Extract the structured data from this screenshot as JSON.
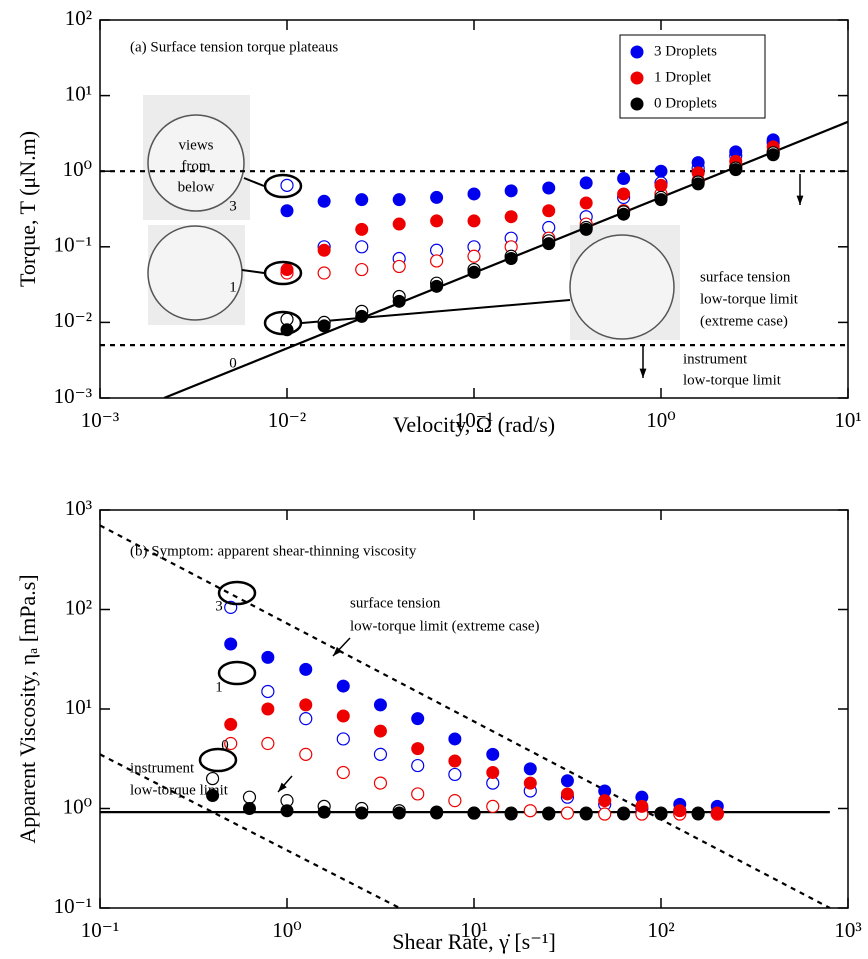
{
  "chart_data": [
    {
      "type": "scatter",
      "log_x": true,
      "log_y": true,
      "xlabel": "Velocity, Ω (rad/s)",
      "ylabel": "Torque, T (μN.m)",
      "xlim": [
        0.001,
        10
      ],
      "ylim": [
        0.001,
        100
      ],
      "xticks": [
        {
          "value": 0.001,
          "label": "10⁻³"
        },
        {
          "value": 0.01,
          "label": "10⁻²"
        },
        {
          "value": 0.1,
          "label": "10⁻¹"
        },
        {
          "value": 1,
          "label": "10⁰"
        },
        {
          "value": 10,
          "label": "10¹"
        }
      ],
      "yticks": [
        {
          "value": 0.001,
          "label": "10⁻³"
        },
        {
          "value": 0.01,
          "label": "10⁻²"
        },
        {
          "value": 0.1,
          "label": "10⁻¹"
        },
        {
          "value": 1,
          "label": "10⁰"
        },
        {
          "value": 10,
          "label": "10¹"
        },
        {
          "value": 100,
          "label": "10²"
        }
      ],
      "legend": "upper right",
      "annotations": [
        "(a) Surface tension torque plateaus",
        "surface tension",
        "low-torque limit",
        "(extreme case)",
        "instrument",
        "low-torque limit",
        "views",
        "from",
        "below",
        "3",
        "1",
        "0"
      ],
      "series": [
        {
          "name": "3 Droplets",
          "color": "#0000ee",
          "x": [
            0.01,
            0.0158,
            0.0251,
            0.0398,
            0.0631,
            0.1,
            0.158,
            0.251,
            0.398,
            0.631,
            1,
            1.58,
            2.51,
            3.98
          ],
          "values": [
            0.3,
            0.4,
            0.42,
            0.42,
            0.45,
            0.5,
            0.55,
            0.6,
            0.7,
            0.8,
            1.0,
            1.3,
            1.8,
            2.6
          ],
          "open_values": [
            0.65,
            0.1,
            0.1,
            0.07,
            0.09,
            0.1,
            0.13,
            0.18,
            0.25,
            0.45,
            0.7,
            1.1,
            1.6,
            2.4
          ]
        },
        {
          "name": "1 Droplet",
          "color": "#ee0000",
          "x": [
            0.01,
            0.0158,
            0.0251,
            0.0398,
            0.0631,
            0.1,
            0.158,
            0.251,
            0.398,
            0.631,
            1,
            1.58,
            2.51,
            3.98
          ],
          "values": [
            0.05,
            0.09,
            0.17,
            0.2,
            0.22,
            0.22,
            0.25,
            0.3,
            0.38,
            0.5,
            0.65,
            0.95,
            1.35,
            2.1
          ],
          "open_values": [
            0.045,
            0.045,
            0.05,
            0.055,
            0.065,
            0.075,
            0.1,
            0.13,
            0.2,
            0.3,
            0.5,
            0.75,
            1.15,
            1.8
          ]
        },
        {
          "name": "0 Droplets",
          "color": "#000000",
          "x": [
            0.01,
            0.0158,
            0.0251,
            0.0398,
            0.0631,
            0.1,
            0.158,
            0.251,
            0.398,
            0.631,
            1,
            1.58,
            2.51,
            3.98
          ],
          "values": [
            0.008,
            0.009,
            0.012,
            0.019,
            0.03,
            0.046,
            0.07,
            0.11,
            0.17,
            0.27,
            0.42,
            0.68,
            1.05,
            1.65
          ],
          "open_values": [
            0.011,
            0.01,
            0.014,
            0.022,
            0.033,
            0.05,
            0.075,
            0.12,
            0.18,
            0.29,
            0.45,
            0.72,
            1.1,
            1.75
          ]
        }
      ],
      "lines": [
        {
          "x": [
            0.0022,
            10
          ],
          "y": [
            0.001,
            4.5
          ],
          "dash": false
        },
        {
          "x": [
            0.001,
            10
          ],
          "y": [
            1,
            1
          ],
          "dash": true
        },
        {
          "x": [
            0.001,
            10
          ],
          "y": [
            0.005,
            0.005
          ],
          "dash": true
        }
      ]
    },
    {
      "type": "scatter",
      "log_x": true,
      "log_y": true,
      "xlabel": "Shear Rate, γ̇ [s⁻¹]",
      "ylabel": "Apparent Viscosity, ηₐ [mPa.s]",
      "xlim": [
        0.1,
        1000
      ],
      "ylim": [
        0.1,
        1000
      ],
      "xticks": [
        {
          "value": 0.1,
          "label": "10⁻¹"
        },
        {
          "value": 1,
          "label": "10⁰"
        },
        {
          "value": 10,
          "label": "10¹"
        },
        {
          "value": 100,
          "label": "10²"
        },
        {
          "value": 1000,
          "label": "10³"
        }
      ],
      "yticks": [
        {
          "value": 0.1,
          "label": "10⁻¹"
        },
        {
          "value": 1,
          "label": "10⁰"
        },
        {
          "value": 10,
          "label": "10¹"
        },
        {
          "value": 100,
          "label": "10²"
        },
        {
          "value": 1000,
          "label": "10³"
        }
      ],
      "annotations": [
        "(b) Symptom: apparent shear-thinning viscosity",
        "surface tension",
        "low-torque limit (extreme case)",
        "instrument",
        "low-torque limit",
        "3",
        "1",
        "0"
      ],
      "series": [
        {
          "color": "#0000ee",
          "x": [
            0.5,
            0.79,
            1.26,
            2,
            3.16,
            5,
            7.9,
            12.6,
            20,
            31.6,
            50,
            79,
            126,
            200
          ],
          "values": [
            45,
            33,
            25,
            17,
            11,
            8,
            5,
            3.5,
            2.5,
            1.9,
            1.5,
            1.3,
            1.1,
            1.05
          ],
          "open_values": [
            105,
            15,
            8,
            5,
            3.5,
            2.7,
            2.2,
            1.8,
            1.5,
            1.3,
            1.1,
            1.0,
            0.95,
            0.9
          ]
        },
        {
          "color": "#ee0000",
          "x": [
            0.5,
            0.79,
            1.26,
            2,
            3.16,
            5,
            7.9,
            12.6,
            20,
            31.6,
            50,
            79,
            126,
            200
          ],
          "values": [
            7,
            10,
            11,
            8.5,
            6,
            4,
            3,
            2.3,
            1.8,
            1.4,
            1.2,
            1.05,
            0.95,
            0.9
          ],
          "open_values": [
            4.5,
            4.5,
            3.5,
            2.3,
            1.8,
            1.4,
            1.2,
            1.05,
            0.95,
            0.9,
            0.88,
            0.88,
            0.88,
            0.88
          ]
        },
        {
          "color": "#000000",
          "x": [
            0.4,
            0.63,
            1,
            1.58,
            2.51,
            3.98,
            6.31,
            10,
            15.8,
            25.1,
            39.8,
            63.1,
            100,
            158
          ],
          "values": [
            1.35,
            1.0,
            0.95,
            0.92,
            0.9,
            0.9,
            0.9,
            0.9,
            0.88,
            0.88,
            0.88,
            0.88,
            0.88,
            0.88
          ],
          "open_values": [
            2.0,
            1.3,
            1.2,
            1.05,
            1.0,
            0.95,
            0.92,
            0.9,
            0.9,
            0.9,
            0.9,
            0.9,
            0.9,
            0.9
          ]
        }
      ],
      "lines": [
        {
          "x": [
            0.1,
            0.1,
            800
          ],
          "y": [
            0.92,
            0.92,
            0.92
          ],
          "dash": false
        },
        {
          "x": [
            0.1,
            800
          ],
          "y": [
            700,
            0.1
          ],
          "dash": true
        },
        {
          "x": [
            0.1,
            4
          ],
          "y": [
            3.5,
            0.1
          ],
          "dash": true
        }
      ]
    }
  ]
}
